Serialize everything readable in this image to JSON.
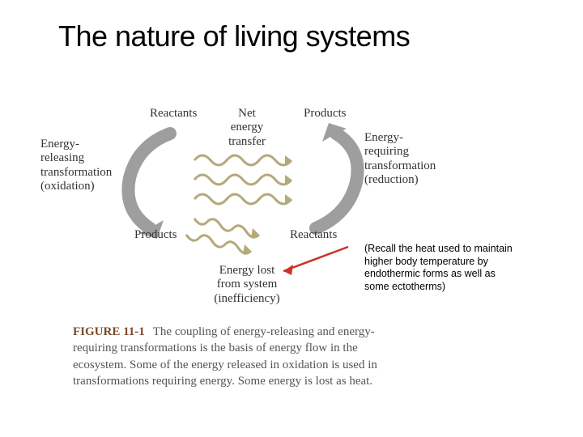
{
  "title": "The nature of living systems",
  "diagram": {
    "reactants_top": "Reactants",
    "products_top": "Products",
    "products_bottom": "Products",
    "reactants_bottom": "Reactants",
    "left_label": "Energy-\nreleasing\ntransformation\n(oxidation)",
    "right_label": "Energy-\nrequiring\ntransformation\n(reduction)",
    "net_transfer": "Net\nenergy\ntransfer",
    "bottom_label": "Energy lost\nfrom system\n(inefficiency)",
    "arrow_gray": "#9e9e9e",
    "arrow_wave": "#b5a97a",
    "arrow_red": "#c8342a",
    "text_color": "#4a4a4a"
  },
  "annotation": "(Recall the heat used to maintain higher body temperature by endothermic forms as well as some ectotherms)",
  "caption": {
    "figure_label": "FIGURE 11-1",
    "text": "The coupling of energy-releasing and energy-requiring transformations is the basis of energy flow in the ecosystem. Some of the energy released in oxidation is used in transformations requiring energy. Some energy is lost as heat."
  }
}
